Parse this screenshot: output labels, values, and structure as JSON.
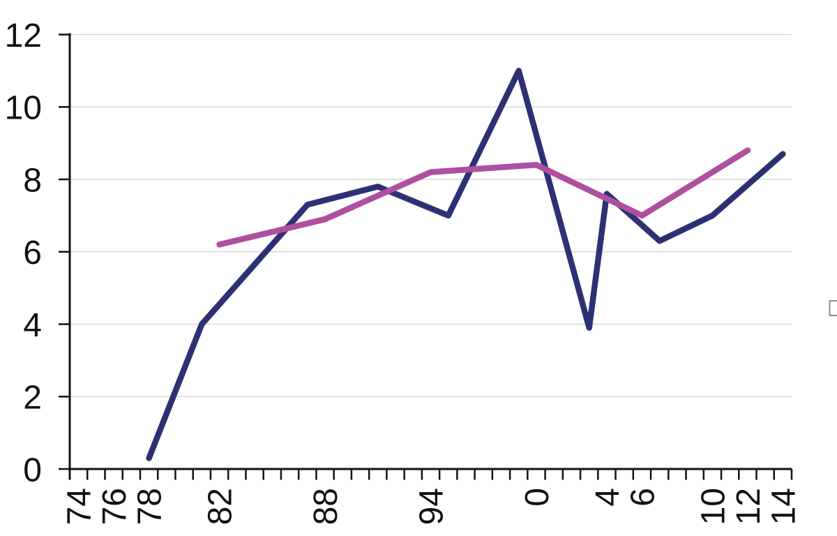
{
  "chart_data": {
    "type": "line",
    "title": "",
    "x_axis": {
      "kind": "category-years",
      "start_year": 1974,
      "end_year": 2014,
      "tick_every_years": 1,
      "label_rotation_deg": -90,
      "labels": [
        {
          "year": 1974,
          "text": "74"
        },
        {
          "year": 1976,
          "text": "76"
        },
        {
          "year": 1978,
          "text": "78"
        },
        {
          "year": 1982,
          "text": "82"
        },
        {
          "year": 1988,
          "text": "88"
        },
        {
          "year": 1994,
          "text": "94"
        },
        {
          "year": 2000,
          "text": "0"
        },
        {
          "year": 2004,
          "text": "4"
        },
        {
          "year": 2006,
          "text": "6"
        },
        {
          "year": 2010,
          "text": "10"
        },
        {
          "year": 2012,
          "text": "12"
        },
        {
          "year": 2014,
          "text": "14"
        }
      ]
    },
    "y_axis": {
      "min": 0,
      "max": 12,
      "step": 2,
      "labels": [
        "0",
        "2",
        "4",
        "6",
        "8",
        "10",
        "12"
      ]
    },
    "grid": {
      "show": true,
      "color": "#d9d9d9"
    },
    "legend_position": "right-clipped",
    "series": [
      {
        "name": "dark-blue-series",
        "color": "#2d3173",
        "points": [
          {
            "year": 1978,
            "value": 0.3
          },
          {
            "year": 1981,
            "value": 4.0
          },
          {
            "year": 1987,
            "value": 7.3
          },
          {
            "year": 1991,
            "value": 7.8
          },
          {
            "year": 1995,
            "value": 7.0
          },
          {
            "year": 1999,
            "value": 11.0
          },
          {
            "year": 2003,
            "value": 3.9
          },
          {
            "year": 2004,
            "value": 7.6
          },
          {
            "year": 2007,
            "value": 6.3
          },
          {
            "year": 2010,
            "value": 7.0
          },
          {
            "year": 2014,
            "value": 8.7
          }
        ]
      },
      {
        "name": "magenta-series",
        "color": "#ae4f9f",
        "points": [
          {
            "year": 1982,
            "value": 6.2
          },
          {
            "year": 1988,
            "value": 6.9
          },
          {
            "year": 1994,
            "value": 8.2
          },
          {
            "year": 2000,
            "value": 8.4
          },
          {
            "year": 2006,
            "value": 7.0
          },
          {
            "year": 2012,
            "value": 8.8
          }
        ]
      }
    ],
    "legend_fragment": {
      "description": "empty legend marker box clipped at right image edge",
      "border_color": "#8c8c8c"
    }
  },
  "colors": {
    "background": "#ffffff",
    "axis": "#111111",
    "text": "#111111",
    "gridline": "#d9d9d9"
  }
}
